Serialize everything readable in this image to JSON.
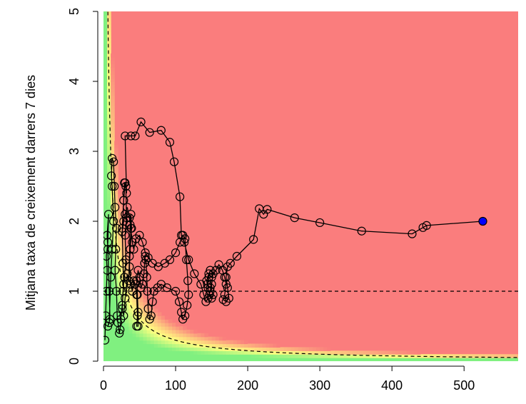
{
  "chart_data": {
    "type": "scatter",
    "title": "",
    "xlabel": "",
    "ylabel": "Mitjana taxa de creixement darrers 7 dies",
    "xlim": [
      0,
      575
    ],
    "ylim": [
      0,
      5
    ],
    "x_ticks": [
      "0",
      "100",
      "200",
      "300",
      "400",
      "500"
    ],
    "y_ticks": [
      "0",
      "1",
      "2",
      "3",
      "4",
      "5"
    ],
    "grid": false,
    "background": "risk heatmap: green (low) to yellow to red (high) by x × y",
    "colors": {
      "high_risk": "#fa7d7d",
      "medium_risk": "#ffff80",
      "low_risk": "#80f080",
      "current_point": "#0000ff",
      "points": "#000000"
    },
    "reference_lines": [
      {
        "type": "horizontal",
        "y": 1,
        "style": "dashed"
      },
      {
        "type": "curve",
        "formula": "y = 30 / x",
        "style": "dashed"
      }
    ],
    "series": [
      {
        "points": [
          [
            2,
            0.3
          ],
          [
            3,
            0.65
          ],
          [
            4,
            1.0
          ],
          [
            5,
            1.3
          ],
          [
            4,
            1.5
          ],
          [
            6,
            1.7
          ],
          [
            7,
            2.1
          ],
          [
            5,
            1.8
          ],
          [
            6,
            1.6
          ],
          [
            8,
            1.0
          ],
          [
            9,
            0.6
          ],
          [
            6,
            0.5
          ],
          [
            8,
            0.55
          ],
          [
            10,
            1.2
          ],
          [
            12,
            1.6
          ],
          [
            14,
            2.0
          ],
          [
            12,
            2.5
          ],
          [
            11,
            2.65
          ],
          [
            12,
            2.9
          ],
          [
            14,
            2.85
          ],
          [
            15,
            2.5
          ],
          [
            16,
            2.2
          ],
          [
            18,
            1.9
          ],
          [
            17,
            1.6
          ],
          [
            16,
            1.3
          ],
          [
            18,
            1.0
          ],
          [
            19,
            0.65
          ],
          [
            20,
            0.55
          ],
          [
            22,
            0.4
          ],
          [
            23,
            0.45
          ],
          [
            24,
            0.6
          ],
          [
            26,
            0.8
          ],
          [
            28,
            1.1
          ],
          [
            27,
            1.4
          ],
          [
            26,
            1.9
          ],
          [
            28,
            2.3
          ],
          [
            29,
            2.55
          ],
          [
            31,
            2.5
          ],
          [
            32,
            2.05
          ],
          [
            30,
            1.8
          ],
          [
            31,
            1.45
          ],
          [
            29,
            1.2
          ],
          [
            27,
            1.0
          ],
          [
            26,
            0.75
          ],
          [
            28,
            0.65
          ],
          [
            30,
            0.9
          ],
          [
            32,
            1.1
          ],
          [
            33,
            1.25
          ],
          [
            35,
            1.15
          ],
          [
            36,
            1.5
          ],
          [
            37,
            1.95
          ],
          [
            38,
            2.1
          ],
          [
            39,
            1.9
          ],
          [
            37,
            1.6
          ],
          [
            36,
            1.35
          ],
          [
            38,
            1.1
          ],
          [
            40,
            1.0
          ],
          [
            42,
            1.15
          ],
          [
            44,
            1.1
          ],
          [
            46,
            0.95
          ],
          [
            47,
            0.65
          ],
          [
            46,
            0.5
          ],
          [
            48,
            0.5
          ],
          [
            48,
            0.7
          ],
          [
            47,
            0.95
          ],
          [
            46,
            1.15
          ],
          [
            48,
            1.3
          ],
          [
            50,
            1.2
          ],
          [
            52,
            1.05
          ],
          [
            54,
            1.1
          ],
          [
            56,
            1.25
          ],
          [
            57,
            1.4
          ],
          [
            58,
            1.5
          ],
          [
            57,
            1.4
          ],
          [
            59,
            1.45
          ],
          [
            60,
            1.2
          ],
          [
            61,
            1.0
          ],
          [
            62,
            0.75
          ],
          [
            64,
            0.6
          ],
          [
            66,
            0.65
          ],
          [
            68,
            0.85
          ],
          [
            70,
            1.0
          ],
          [
            75,
            1.05
          ],
          [
            80,
            1.1
          ],
          [
            88,
            1.05
          ],
          [
            100,
            1.0
          ],
          [
            105,
            0.85
          ],
          [
            108,
            0.7
          ],
          [
            110,
            0.6
          ],
          [
            113,
            0.65
          ],
          [
            116,
            0.8
          ],
          [
            118,
            0.95
          ],
          [
            117,
            1.15
          ],
          [
            115,
            1.45
          ],
          [
            113,
            1.75
          ],
          [
            110,
            1.8
          ],
          [
            106,
            1.7
          ],
          [
            100,
            1.55
          ],
          [
            92,
            1.45
          ],
          [
            85,
            1.4
          ],
          [
            76,
            1.35
          ],
          [
            68,
            1.4
          ],
          [
            62,
            1.48
          ],
          [
            58,
            1.55
          ],
          [
            54,
            1.7
          ],
          [
            50,
            1.8
          ],
          [
            45,
            1.75
          ],
          [
            42,
            1.6
          ],
          [
            40,
            1.7
          ],
          [
            38,
            1.9
          ],
          [
            36,
            2.05
          ],
          [
            33,
            2.2
          ],
          [
            30,
            2.1
          ],
          [
            28,
            2.0
          ],
          [
            26,
            1.85
          ],
          [
            28,
            2.3
          ],
          [
            30,
            2.55
          ],
          [
            32,
            2.4
          ],
          [
            30,
            3.22
          ],
          [
            38,
            3.22
          ],
          [
            44,
            3.22
          ],
          [
            52,
            3.42
          ],
          [
            64,
            3.27
          ],
          [
            80,
            3.3
          ],
          [
            92,
            3.13
          ],
          [
            98,
            2.85
          ],
          [
            106,
            2.35
          ],
          [
            108,
            1.8
          ],
          [
            112,
            1.7
          ],
          [
            118,
            1.45
          ],
          [
            126,
            1.25
          ],
          [
            135,
            1.1
          ],
          [
            139,
            0.95
          ],
          [
            142,
            0.85
          ],
          [
            145,
            0.9
          ],
          [
            148,
            1.0
          ],
          [
            150,
            1.1
          ],
          [
            152,
            1.25
          ],
          [
            148,
            1.3
          ],
          [
            146,
            1.2
          ],
          [
            144,
            1.1
          ],
          [
            148,
            1.05
          ],
          [
            152,
            0.95
          ],
          [
            150,
            0.9
          ],
          [
            147,
            0.95
          ],
          [
            145,
            1.05
          ],
          [
            143,
            1.15
          ],
          [
            146,
            1.25
          ],
          [
            150,
            1.2
          ],
          [
            156,
            1.3
          ],
          [
            160,
            1.38
          ],
          [
            165,
            1.3
          ],
          [
            168,
            1.2
          ],
          [
            170,
            1.1
          ],
          [
            168,
            0.95
          ],
          [
            166,
            0.88
          ],
          [
            170,
            0.85
          ],
          [
            174,
            0.9
          ],
          [
            172,
            1.05
          ],
          [
            170,
            1.2
          ],
          [
            172,
            1.35
          ],
          [
            176,
            1.4
          ],
          [
            185,
            1.5
          ],
          [
            208,
            1.74
          ],
          [
            216,
            2.18
          ],
          [
            222,
            2.1
          ],
          [
            227,
            2.17
          ],
          [
            265,
            2.05
          ],
          [
            300,
            1.98
          ],
          [
            358,
            1.86
          ],
          [
            428,
            1.82
          ],
          [
            443,
            1.91
          ],
          [
            448,
            1.94
          ],
          [
            526,
            2.0
          ]
        ]
      }
    ],
    "current_point": [
      526,
      2.0
    ]
  }
}
